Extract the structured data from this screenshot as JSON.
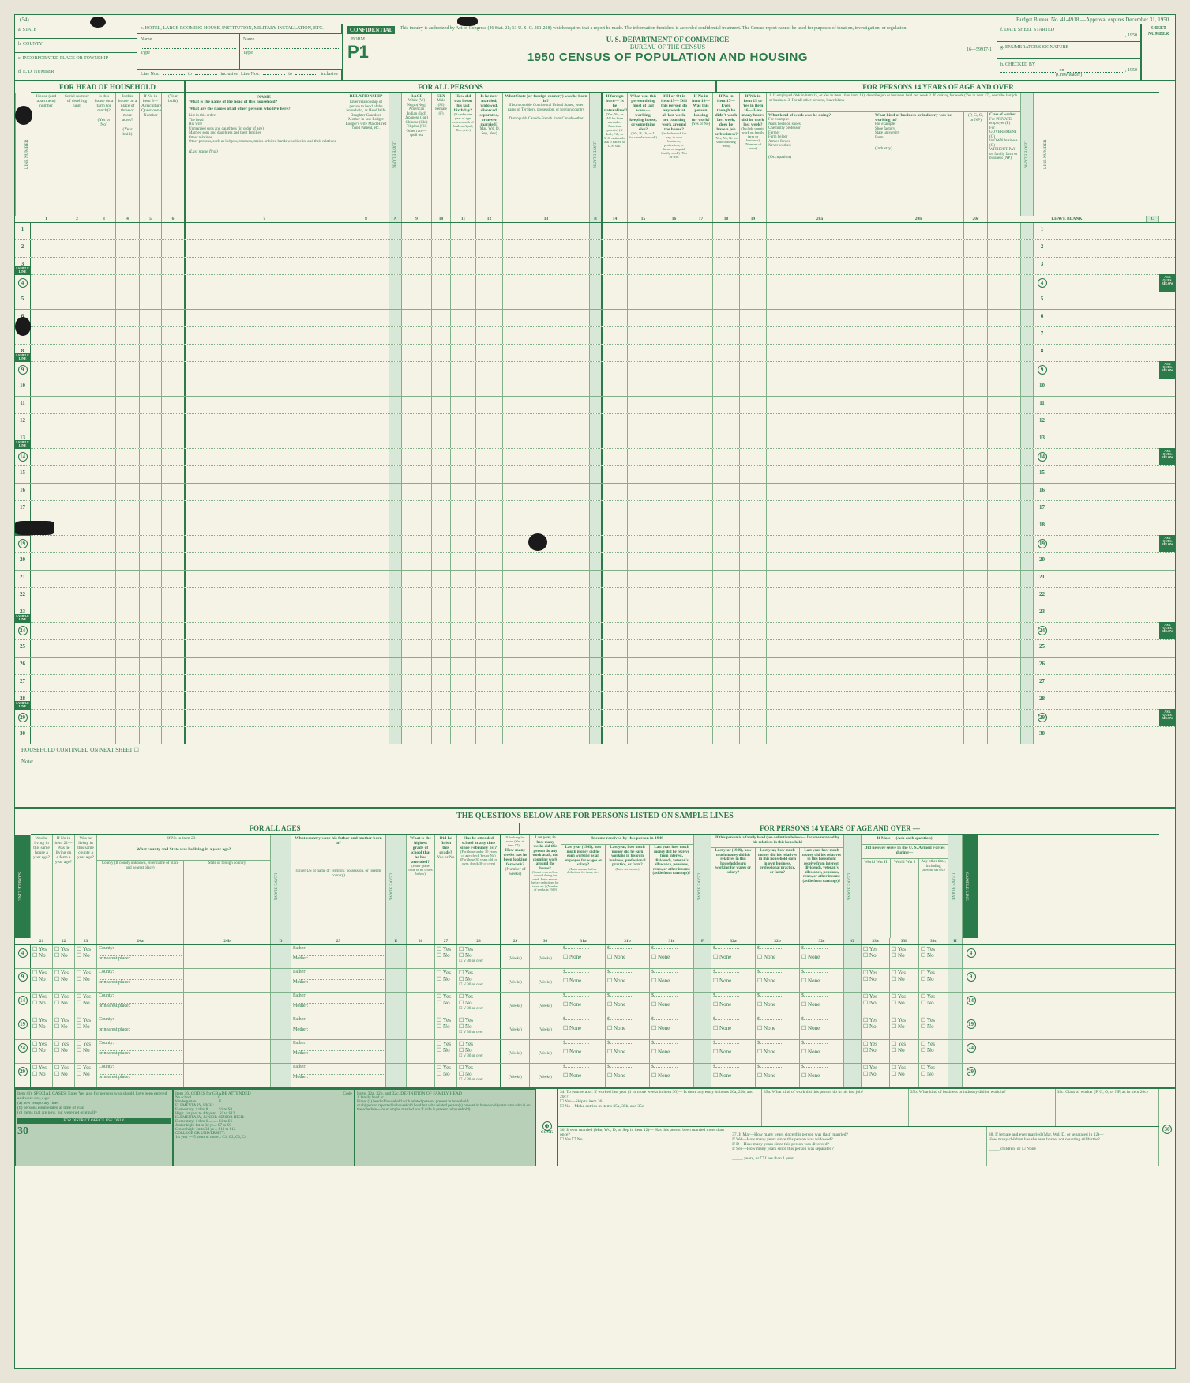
{
  "meta": {
    "page_num": "(54)",
    "budget": "Budget Bureau No. 41-4918.—Approval expires December 31, 1950."
  },
  "header": {
    "a_state": "a. STATE",
    "b_county": "b. COUNTY",
    "c_place": "c. INCORPORATED PLACE OR TOWNSHIP",
    "d_ed": "d. E. D. NUMBER",
    "e_hotel": "e. HOTEL, LARGE ROOMING HOUSE, INSTITUTION, MILITARY INSTALLATION, ETC.",
    "name": "Name",
    "type": "Type",
    "line_nos": "Line Nos.",
    "to": "to",
    "inclusive": "inclusive",
    "confidential": "CONFIDENTIAL",
    "conf_text": "This inquiry is authorized by Act of Congress (46 Stat. 21; 13 U. S. C. 201-218) which requires that a report be made. The information furnished is accorded confidential treatment. The Census report cannot be used for purposes of taxation, investigation, or regulation.",
    "form": "FORM",
    "p1": "P1",
    "dept": "U. S. DEPARTMENT OF COMMERCE",
    "bureau": "BUREAU OF THE CENSUS",
    "census_title": "1950 CENSUS OF POPULATION AND HOUSING",
    "form_no": "16—59917-1",
    "f_date": "f. DATE SHEET STARTED",
    "year": ", 1950",
    "g_sig": "g. ENUMERATOR'S SIGNATURE",
    "h_checked": "h. CHECKED BY",
    "on": "on",
    "crew": "(Crew leader)",
    "sheet": "SHEET NUMBER"
  },
  "sections": {
    "head": "FOR HEAD OF HOUSEHOLD",
    "all": "FOR ALL PERSONS",
    "over14": "FOR PERSONS 14 YEARS OF AGE AND OVER",
    "all_ages": "FOR ALL AGES",
    "over14b": "FOR PERSONS 14 YEARS OF AGE AND OVER —",
    "sample_title": "THE QUESTIONS BELOW ARE FOR PERSONS LISTED ON SAMPLE LINES"
  },
  "cols": {
    "line_number": "LINE NUMBER",
    "c1": "House (and apartment) number",
    "c2": "Serial number of dwelling unit",
    "c3": "Is this house on a farm (or ranch)?",
    "c4": "Is this house on a place of three or more acres?",
    "c5": "If No in item 3— Agriculture Questionnaire Number",
    "c6_name": "NAME",
    "c6_q1": "What is the name of the head of this household?",
    "c6_q2": "What are the names of all other persons who live here?",
    "c6_list": "List in this order:\nThe head\nHis wife\nUnmarried sons and daughters (in order of age)\nMarried sons and daughters and their families\nOther relatives\nOther persons, such as lodgers, roomers, maids or hired hands who live in, and their relatives",
    "c6_last": "(Last name first)",
    "c7_rel": "RELATIONSHIP",
    "c7_txt": "Enter relationship of person to head of the household, as Head Wife Daughter Grandson Mother-in-law Lodger Lodger's wife Maid Hired hand Patient, etc.",
    "c8_race": "RACE",
    "c8_txt": "White (W) Negro(Neg) American Indian (Ind) Japanese (Jap) Chinese (Chi) Filipino (Fil) Other race—spell out",
    "c9_sex": "SEX",
    "c9_txt": "Male (M) Female (F)",
    "c10": "How old was he on his last birthday?",
    "c10_sub": "(If under one year of age, enter month of birth as April, Dec., etc.)",
    "c11": "Is he now married, widowed, divorced, separated, or never married?",
    "c11_sub": "(Mar, Wd, D, Sep, Nev)",
    "c12": "What State (or foreign country) was he born in?",
    "c12_sub": "If born outside Continental United States, enter name of Territory, possession, or foreign country\n\nDistinguish Canada-French from Canada-other",
    "c13": "If foreign born— Is he naturalized?",
    "c13_sub": "(Yes, No, or AP for born abroad of American parents)\n(If Ind., Fil., or U.S. nationals, ask if native or U.S. soil)",
    "c14": "What was this person doing most of last week— working, keeping house, or something else?",
    "c14_sub": "(Wk, H, Ot, or U for unable to work)",
    "c15": "If H or Ot in item 15— Did this person do any work at all last week, not counting work around the house?",
    "c15_sub": "(Include work for pay, in own business, profession, or farm, or unpaid family work) (Yes or No)",
    "c16": "If No in item 16— Was this person looking for work?",
    "c16_sub": "(Yes or No)",
    "c17": "If No in item 17— Even though he didn't work last week, does he have a job or business?",
    "c17_sub": "(Yes, No, Nt for school during term)",
    "c18": "If Wk in item 15 or Yes in item 16— How many hours did he work last week?",
    "c18_sub": "(Include unpaid work on family farm or business)",
    "c19": "(Number of hours)",
    "c20a_hdr": "1. If employed (Wk in item 15, or Yes in item 16 or item 18), describe job or business held last week\n2. If looking for work (Yes in item 17), describe last job or business\n3. For all other persons, leave blank",
    "c20a_q": "What kind of work was he doing?",
    "c20a_ex": "For example:\nNails heels on shoes\nChemistry professor\nFarmer\nFarm helper\nArmed forces\nNever worked",
    "c20a_lbl": "(Occupation)",
    "c20b_q": "What kind of business or industry was he working in?",
    "c20b_ex": "For example:\nShoe factory\nState university\nFarm",
    "c20b_lbl": "(Industry)",
    "c20c": "Class of worker",
    "c20c_txt": "For PRIVATE employer (P)\nFor GOVERNMENT (G)\nIn OWN business (O)\nWITHOUT PAY on family farm or business (NP)",
    "c20c_lbl": "(P, G, O, or NP)",
    "leave_blank": "LEAVE BLANK",
    "yes3": "(Yes or No)",
    "yes4": "(Year built)"
  },
  "col_nums": [
    "1",
    "2",
    "3",
    "4",
    "5",
    "6",
    "7",
    "8",
    "A",
    "9",
    "10",
    "11",
    "12",
    "13",
    "B",
    "14",
    "15",
    "16",
    "17",
    "18",
    "19",
    "20a",
    "20b",
    "20c",
    "C"
  ],
  "rows": [
    1,
    2,
    3,
    4,
    5,
    6,
    7,
    8,
    9,
    10,
    11,
    12,
    13,
    14,
    15,
    16,
    17,
    18,
    19,
    20,
    21,
    22,
    23,
    24,
    25,
    26,
    27,
    28,
    29,
    30
  ],
  "sample_lines": [
    4,
    9,
    14,
    19,
    24,
    29
  ],
  "sample_label": "SAMPLE LINE",
  "ask_label": "ASK QUES. BELOW",
  "continued": "HOUSEHOLD CONTINUED ON NEXT SHEET ☐",
  "note": "Note:",
  "bottom_cols": {
    "c21": "Was he living in this same house a year ago?",
    "c22": "If No in item 21— Was he living on a farm a year ago?",
    "c23": "Was he living in this same county a year ago?",
    "c24_hdr": "If No in item 23—",
    "c24_q": "What county and State was he living in a year ago?",
    "c24a": "County\n(If county unknown, enter name of place and nearest place)",
    "c24b": "State or foreign country",
    "c25_q": "What country were his father and mother born in?",
    "c25_sub": "(Enter US or name of Territory, possession, or foreign country)",
    "c26": "What is the highest grade of school that he has attended?",
    "c26_sub": "(Enter grade code of no codes below)",
    "c27": "Did he finish this grade?",
    "c27_sub": "Yes or No",
    "c28": "Has he attended school at any time since February 1st?",
    "c28_sub": "(For those under 30 years of age check Yes or No)\n(For those 30 years old or over, check 30 or over)",
    "c29_hdr": "If looking for work (Yes in item 17)—",
    "c29": "How many weeks has he been looking for work?",
    "c29_sub": "(Number of weeks)",
    "c30": "Last year, in how many weeks did this person do any work at all, not counting work around the house?",
    "c30_sub": "(Count even an hour worked during the week. Enter amount before deductions for taxes, etc.)\n(Number of weeks in 1949)",
    "income_hdr": "Income received by this person in 1949",
    "c31a": "Last year (1949), how much money did he earn working as an employee for wages or salary?",
    "c31a_sub": "(Enter amount before deductions for taxes, etc.)",
    "c31b": "Last year, how much money did he earn working in his own business, professional practice, or farm?",
    "c31b_sub": "(Enter net income)",
    "c31c": "Last year, how much money did he receive from interest, dividends, veteran's allowance, pensions, rents, or other income (aside from earnings)?",
    "family_hdr": "If this person is a family head (see definition below)— Income received by his relatives in this household",
    "c32a": "Last year (1949), how much money did his relatives in this household earn working for wages or salary?",
    "c32b": "Last year, how much money did his relatives in this household earn in own business, professional practice, or farm?",
    "c32c": "Last year, how much money did his relatives in this household receive from interest, dividends, veteran's allowance, pensions, rents, or other income (aside from earnings)?",
    "male_hdr": "If Male— (Ask each question)",
    "c33_q": "Did he ever serve in the U. S. Armed Forces during—",
    "c33a": "World War II",
    "c33b": "World War I",
    "c33c": "Any other time, including present service",
    "father": "Father:",
    "mother": "Mother:",
    "county_lbl": "County:",
    "nearest_lbl": "or nearest place:",
    "yes": "Yes",
    "no": "No",
    "none": "None",
    "weeks": "(Weeks)",
    "thirty": "30 or over",
    "dollar": "$",
    "v": "V"
  },
  "bottom_nums": [
    "21",
    "22",
    "23",
    "24a",
    "24b",
    "D",
    "25",
    "E",
    "26",
    "27",
    "28",
    "29",
    "30",
    "31a",
    "31b",
    "31c",
    "F",
    "32a",
    "32b",
    "32c",
    "G",
    "33a",
    "33b",
    "33c",
    "H"
  ],
  "footer": {
    "item_a": "Item (4), SPECIAL CASES: Enter Yes also for persons who should have been entered and were not, e.g.:\n(a) new temporary lines\n(b) persons enumerated at time of visit\n(c) Items that are now, but were not originally",
    "codes_hdr": "Item 36. CODES for GRADE ATTENDED",
    "codes": "No school.......................... 0\nKindergarten...................... K\nELEMENTARY, HIGH:\nElementary: 1 thru 8.......... S1 to S8\nHigh: 1st year to 4th year... S9 to S12\nELEMENTARY, JUNIOR-SENIOR HIGH:\nElementary: 1 thru 6.......... S1 to S6\nJunior high: 1st to 3d yr.... S7 to S9\nSenior high: 1st to 3d yr.... S10 to S12\nCOLLEGE OR UNIVERSITY:\n1st year — 5 years or more... C1, C2, C3, C4",
    "code_col": "Code",
    "def_hdr": "Items 32a, 32b, and 32c. DEFINITION OF FAMILY HEAD",
    "def_txt": "A family head is:\nEither (a) head of household with related persons present in household;\nor (b) person reported in household head but with related person(s) present in household (enter data who is on the schedule—for example, married son if wife is present in household)",
    "district": "FOR DISTRICT OFFICE USE ONLY",
    "cont": "CONT.",
    "q34": "34. To enumerator: If worked last year (1 or more weeks in item 30)— Is there any entry in items 20a, 20b, and 20c?\n☐ Yes—Skip to item 36\n☐ No—Make entries in items 35a, 35b, and 35c",
    "q35a": "35a. What kind of work did this person do in his last job?",
    "q35b": "35b. What kind of business or industry did he work in?",
    "q35c": "35c. Class of worker (P, G, O, or NP, as in item 20c)",
    "q36": "36. If ever married (Mar, Wd, D, or Sep in item 12)— Has this person been married more than once?",
    "q36_yn": "☐ Yes  ☐ No",
    "q37": "37. If Mar—How many years since this person was (last) married?\nIf Wd—How many years since this person was widowed?\nIf D—How many years since this person was divorced?\nIf Sep—How many years since this person was separated?",
    "q37_ans": "_____ years, or ☐ Less than 1 year",
    "q38": "38. If female and ever married (Mar, Wd, D, or separated in 12)—\nHow many children has she ever borne, not counting stillbirths?",
    "q38_ans": "_____ children, or ☐ None",
    "thirty": "30"
  },
  "colors": {
    "ink": "#2a7a4a",
    "paper": "#f5f2e6",
    "tint": "#c8dcc8",
    "tint2": "#d8e8d8",
    "line": "#7fb088"
  }
}
